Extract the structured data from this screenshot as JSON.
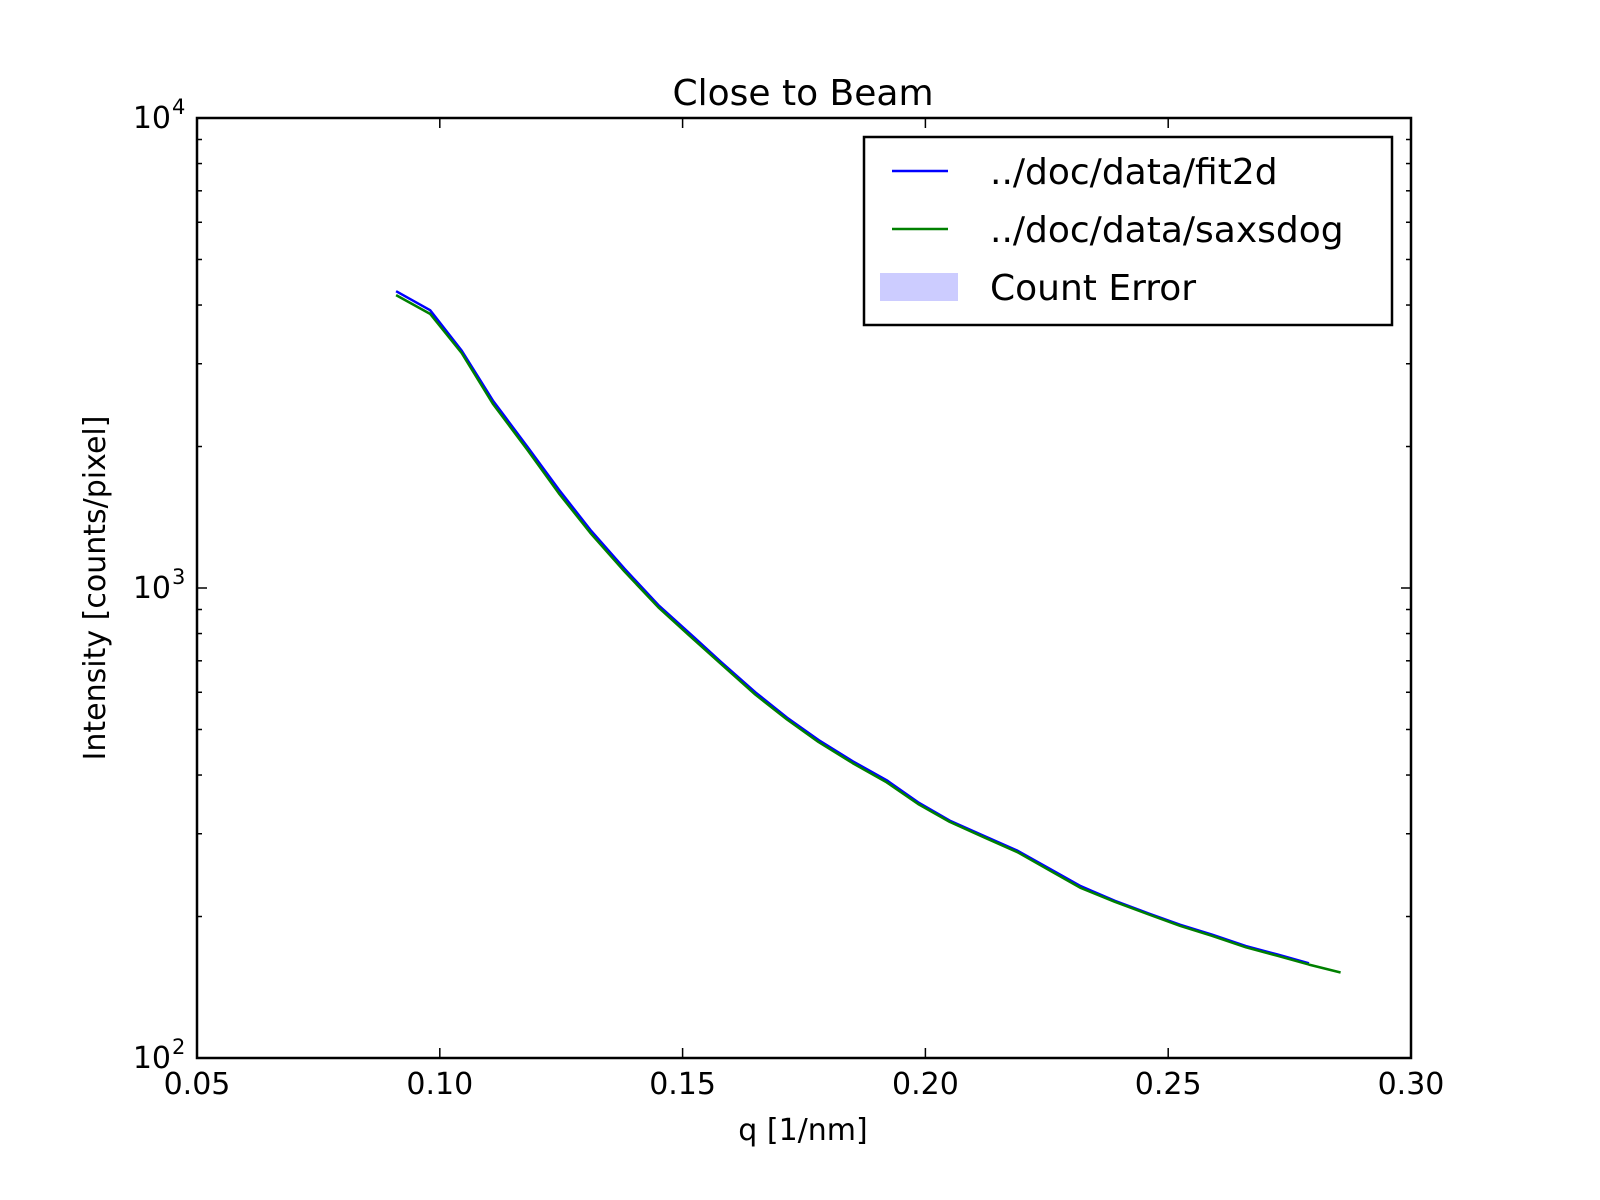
{
  "chart_data": {
    "type": "line",
    "title": "Close to Beam",
    "xlabel": "q [1/nm]",
    "ylabel": "Intensity [counts/pixel]",
    "xlim": [
      0.05,
      0.3
    ],
    "ylim": [
      100,
      10000
    ],
    "yscale": "log",
    "grid": false,
    "legend_position": "top-right",
    "x_ticks": [
      0.05,
      0.1,
      0.15,
      0.2,
      0.25,
      0.3
    ],
    "x_tick_labels": [
      "0.05",
      "0.10",
      "0.15",
      "0.20",
      "0.25",
      "0.30"
    ],
    "y_ticks": [
      100,
      1000,
      10000
    ],
    "y_tick_labels": [
      {
        "base": "10",
        "exp": "2"
      },
      {
        "base": "10",
        "exp": "3"
      },
      {
        "base": "10",
        "exp": "4"
      }
    ],
    "series": [
      {
        "name": "../doc/data/fit2d",
        "color": "#0000ff",
        "x": [
          0.091,
          0.098,
          0.1045,
          0.111,
          0.118,
          0.1245,
          0.131,
          0.138,
          0.145,
          0.1515,
          0.158,
          0.165,
          0.1715,
          0.178,
          0.185,
          0.192,
          0.1985,
          0.205,
          0.212,
          0.219,
          0.2255,
          0.232,
          0.239,
          0.246,
          0.2525,
          0.259,
          0.266,
          0.2725,
          0.279
        ],
        "y": [
          4280,
          3900,
          3200,
          2500,
          2000,
          1620,
          1330,
          1100,
          920,
          800,
          695,
          600,
          530,
          475,
          428,
          390,
          350,
          320,
          297,
          276,
          253,
          232,
          216,
          203,
          192,
          183,
          173,
          166,
          159
        ]
      },
      {
        "name": "../doc/data/saxsdog",
        "color": "#008000",
        "x": [
          0.091,
          0.098,
          0.1045,
          0.111,
          0.118,
          0.1245,
          0.131,
          0.138,
          0.145,
          0.1515,
          0.158,
          0.165,
          0.1715,
          0.178,
          0.185,
          0.192,
          0.1985,
          0.205,
          0.212,
          0.219,
          0.2255,
          0.232,
          0.239,
          0.246,
          0.2525,
          0.259,
          0.266,
          0.2725,
          0.279,
          0.2855
        ],
        "y": [
          4200,
          3830,
          3160,
          2460,
          1970,
          1590,
          1310,
          1085,
          910,
          790,
          688,
          593,
          525,
          470,
          424,
          386,
          347,
          318,
          295,
          274,
          251,
          230,
          215,
          202,
          191,
          182,
          172,
          165,
          158,
          152
        ]
      }
    ],
    "legend": [
      {
        "label": "../doc/data/fit2d",
        "kind": "line",
        "color": "#0000ff"
      },
      {
        "label": "../doc/data/saxsdog",
        "kind": "line",
        "color": "#008000"
      },
      {
        "label": "Count Error",
        "kind": "patch",
        "color": "#ccccff"
      }
    ]
  }
}
